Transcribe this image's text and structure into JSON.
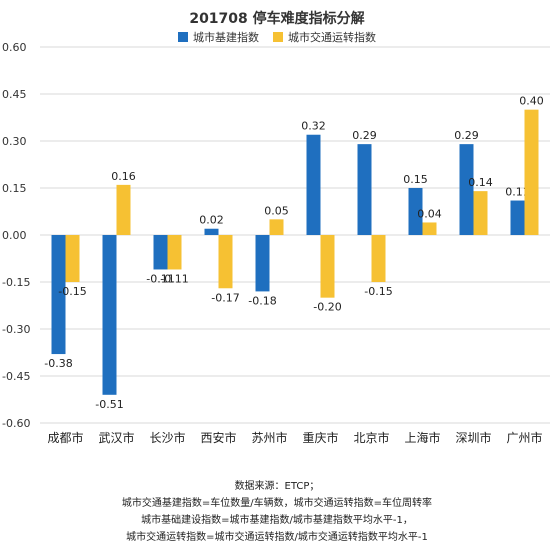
{
  "chart_data": {
    "type": "bar",
    "title": "201708 停车难度指标分解",
    "categories": [
      "成都市",
      "武汉市",
      "长沙市",
      "西安市",
      "苏州市",
      "重庆市",
      "北京市",
      "上海市",
      "深圳市",
      "广州市"
    ],
    "series": [
      {
        "name": "城市基建指数",
        "color": "#1f6fbf",
        "values": [
          -0.38,
          -0.51,
          -0.11,
          0.02,
          -0.18,
          0.32,
          0.29,
          0.15,
          0.29,
          0.11
        ],
        "labels": [
          "-0.38",
          "-0.51",
          "-0.11",
          "0.02",
          "-0.18",
          "0.32",
          "0.29",
          "0.15",
          "0.29",
          "0.11"
        ]
      },
      {
        "name": "城市交通运转指数",
        "color": "#f6c133",
        "values": [
          -0.15,
          0.16,
          -0.11,
          -0.17,
          0.05,
          -0.2,
          -0.15,
          0.04,
          0.14,
          0.4
        ],
        "labels": [
          "-0.15",
          "0.16",
          "-0.11",
          "-0.17",
          "0.05",
          "-0.20",
          "-0.15",
          "0.04",
          "0.14",
          "0.40"
        ]
      }
    ],
    "yticks": [
      "0.60",
      "0.45",
      "0.30",
      "0.15",
      "0.00",
      "-0.15",
      "-0.30",
      "-0.45",
      "-0.60"
    ],
    "ylim": [
      -0.6,
      0.6
    ],
    "grid": true,
    "legend_position": "top-center"
  },
  "footnotes": [
    "数据来源：ETCP；",
    "城市交通基建指数=车位数量/车辆数，城市交通运转指数=车位周转率",
    "城市基础建设指数=城市基建指数/城市基建指数平均水平-1，",
    "城市交通运转指数=城市交通运转指数/城市交通运转指数平均水平-1"
  ]
}
